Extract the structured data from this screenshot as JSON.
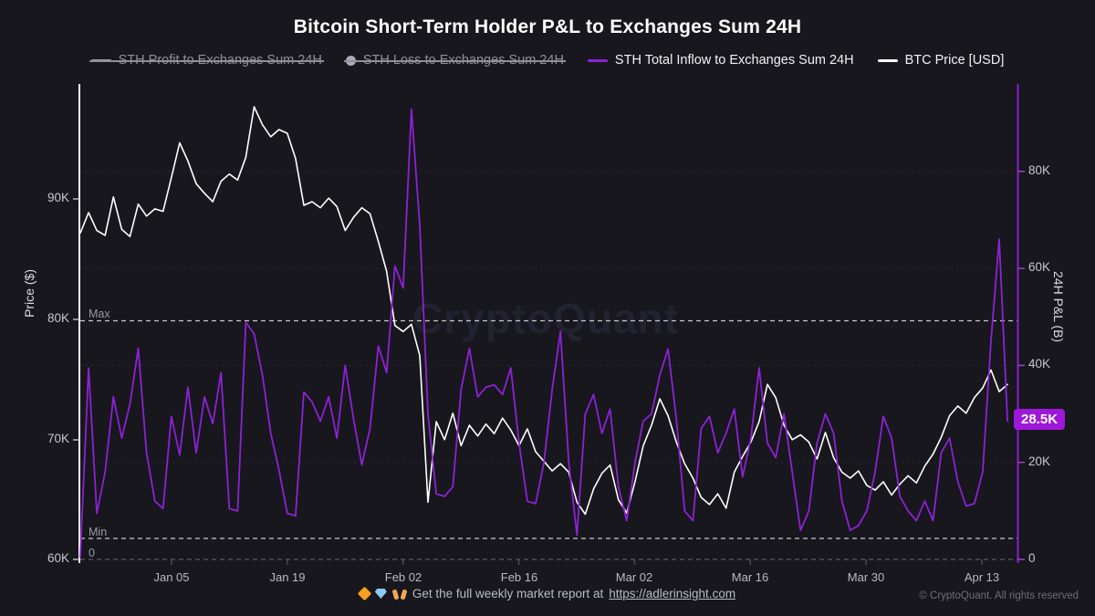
{
  "title": "Bitcoin Short-Term Holder P&L to Exchanges Sum 24H",
  "legend": [
    {
      "label": "STH Profit to Exchanges Sum 24H",
      "state": "disabled",
      "icon": "line-swatch",
      "color": "#9aa0a6"
    },
    {
      "label": "STH Loss to Exchanges Sum 24H",
      "state": "disabled",
      "icon": "circle-swatch",
      "color": "#aab"
    },
    {
      "label": "STH Total Inflow to Exchanges Sum 24H",
      "state": "active",
      "icon": "line-swatch",
      "color": "#8e21d6"
    },
    {
      "label": "BTC Price [USD]",
      "state": "active",
      "icon": "line-swatch",
      "color": "#ffffff"
    }
  ],
  "left_axis": {
    "title": "Price ($)",
    "ticks": [
      "90K",
      "80K",
      "70K",
      "60K"
    ]
  },
  "right_axis": {
    "title": "24H P&L (B)",
    "ticks": [
      "80K",
      "60K",
      "40K",
      "20K",
      "0"
    ],
    "last_value_badge": "28.5K"
  },
  "x_axis": {
    "ticks": [
      "Jan 05",
      "Jan 19",
      "Feb 02",
      "Feb 16",
      "Mar 02",
      "Mar 16",
      "Mar 30",
      "Apr 13"
    ]
  },
  "annotations": {
    "max_label": "Max",
    "min_label": "Min",
    "zero_label": "0"
  },
  "watermark": "CryptoQuant",
  "footer": {
    "icons": [
      {
        "name": "orange-diamond-emoji",
        "char": "🔶"
      },
      {
        "name": "gem-emoji",
        "char": "💎"
      },
      {
        "name": "raising-hands-emoji",
        "char": "🙌"
      }
    ],
    "center_text": "Get the full weekly market report at",
    "center_link": "https://adlerinsight.com",
    "copyright": "© CryptoQuant. All rights reserved"
  },
  "colors": {
    "background": "#17171d",
    "btc_price_line": "#ffffff",
    "sth_inflow_line": "#8e21d6",
    "badge_bg": "#9f17d9",
    "gridline": "#2a2a31",
    "ref_dash": "#c9c9cf"
  },
  "chart_data": {
    "type": "line",
    "title": "Bitcoin Short-Term Holder P&L to Exchanges Sum 24H",
    "x_tick_labels": [
      "Jan 05",
      "Jan 19",
      "Feb 02",
      "Feb 16",
      "Mar 02",
      "Mar 16",
      "Mar 30",
      "Apr 13"
    ],
    "x_range_estimate": [
      "Dec 25",
      "Apr 16"
    ],
    "sampling": "daily",
    "left_axis": {
      "label": "Price ($)",
      "range_k": [
        60,
        99.3
      ],
      "ticks_k": [
        90,
        80,
        70,
        60
      ]
    },
    "right_axis": {
      "label": "24H P&L (B)",
      "range_k": [
        0,
        97.5
      ],
      "ticks_k": [
        80,
        60,
        40,
        20,
        0
      ]
    },
    "reference_lines_right_axis_k": {
      "max": 49.1,
      "min": 4.3,
      "zero": 0
    },
    "last_value_right_axis_k": 28.5,
    "legend_position": "top",
    "grid": "horizontal-dotted",
    "series": [
      {
        "name": "BTC Price [USD]",
        "axis": "left",
        "color": "#ffffff",
        "unit": "K USD",
        "values": [
          87.2,
          88.9,
          87.4,
          87.0,
          90.2,
          87.5,
          86.9,
          89.6,
          88.6,
          89.2,
          89.0,
          91.8,
          94.7,
          93.2,
          91.3,
          90.5,
          89.8,
          91.5,
          92.1,
          91.6,
          93.5,
          97.7,
          96.2,
          95.2,
          95.8,
          95.5,
          93.4,
          89.5,
          89.8,
          89.3,
          90.1,
          89.4,
          87.4,
          88.5,
          89.3,
          88.8,
          86.5,
          84.0,
          79.5,
          79.0,
          79.6,
          77.0,
          64.8,
          71.5,
          70.0,
          72.2,
          69.5,
          71.2,
          70.3,
          71.3,
          70.5,
          71.8,
          70.8,
          69.5,
          70.9,
          69.0,
          68.2,
          67.4,
          68.0,
          67.3,
          64.8,
          63.8,
          65.9,
          67.2,
          67.9,
          65.0,
          63.9,
          66.5,
          69.5,
          71.2,
          73.4,
          72.0,
          69.8,
          68.0,
          66.8,
          65.2,
          64.6,
          65.5,
          64.3,
          67.3,
          68.6,
          69.8,
          71.5,
          74.6,
          73.5,
          71.2,
          70.0,
          70.4,
          69.8,
          68.4,
          70.6,
          68.5,
          67.3,
          66.8,
          67.4,
          66.2,
          65.8,
          66.5,
          65.4,
          66.3,
          67.0,
          66.4,
          67.8,
          68.8,
          70.2,
          72.0,
          72.8,
          72.2,
          73.5,
          74.3,
          75.8,
          74.0,
          74.6
        ]
      },
      {
        "name": "STH Total Inflow to Exchanges Sum 24H",
        "axis": "right",
        "color": "#8e21d6",
        "unit": "K (B)",
        "values": [
          0.5,
          39.5,
          9.5,
          18,
          33.5,
          25,
          32,
          43.5,
          22,
          12,
          10.5,
          29.5,
          21.5,
          35.5,
          22,
          33.5,
          28,
          38.5,
          10.5,
          10,
          48.9,
          46.5,
          38,
          26,
          18.5,
          9.5,
          9,
          34.5,
          32.5,
          28.5,
          33.5,
          25,
          40,
          29,
          19.5,
          27,
          44,
          38.5,
          60.5,
          56,
          92.8,
          69,
          30,
          13.5,
          13,
          15,
          35,
          43.5,
          33.5,
          35.5,
          36,
          34,
          39.5,
          24,
          12,
          11.5,
          20,
          35,
          47,
          20,
          5,
          30,
          34,
          26,
          31,
          15,
          8,
          20,
          28.5,
          30,
          38,
          43.4,
          29,
          10,
          8,
          27,
          29.5,
          22,
          26,
          31,
          17,
          25,
          39.5,
          24,
          21,
          30,
          18,
          6,
          10,
          24,
          30,
          26,
          12,
          6,
          7,
          10,
          18,
          29.5,
          25,
          13,
          10,
          8,
          12,
          8,
          22,
          25,
          16,
          11,
          11.5,
          18,
          45,
          66,
          28.5
        ]
      }
    ]
  }
}
